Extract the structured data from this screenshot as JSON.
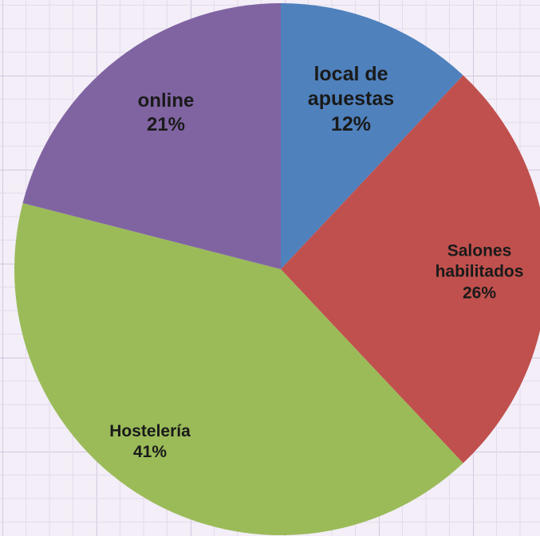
{
  "chart_data": {
    "type": "pie",
    "categories": [
      "local de apuestas",
      "Salones habilitados",
      "Hostelería",
      "online"
    ],
    "values": [
      12,
      26,
      41,
      21
    ],
    "value_labels": [
      "12%",
      "26%",
      "41%",
      "21%"
    ],
    "colors": [
      "#4f81bd",
      "#c0504d",
      "#9bbb59",
      "#8064a2"
    ]
  }
}
